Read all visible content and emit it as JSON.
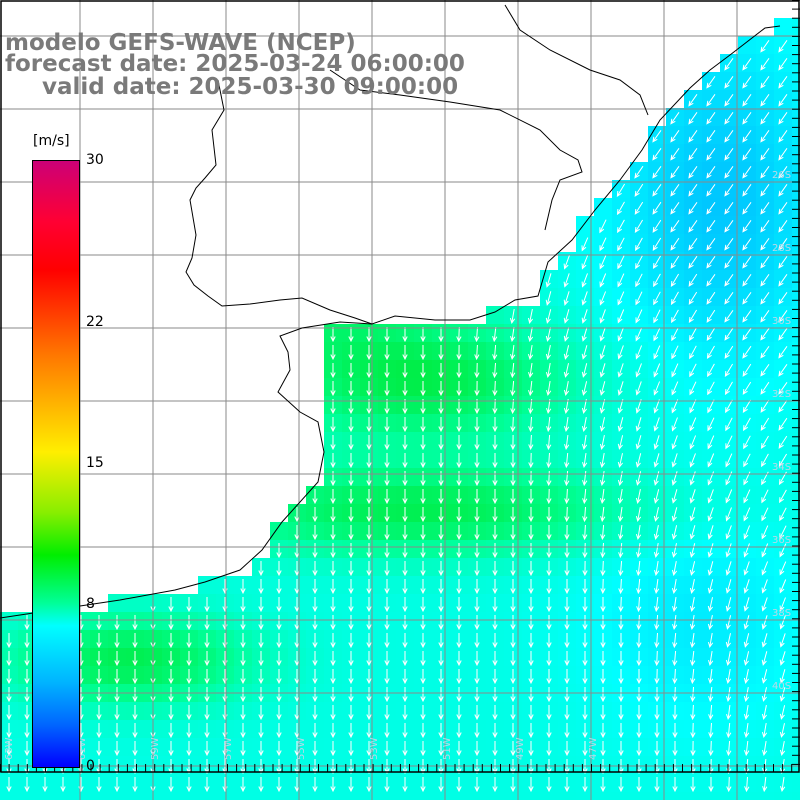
{
  "title": {
    "line1": "modelo GEFS-WAVE (NCEP)",
    "line2": "forecast date: 2025-03-24 06:00:00",
    "line3": "valid date: 2025-03-30 09:00:00"
  },
  "colorbar": {
    "unit": "[m/s]",
    "min": 0,
    "max": 30,
    "ticks": [
      "30",
      "22",
      "15",
      "8",
      "0"
    ],
    "stops": [
      {
        "v": 30,
        "c": "#cc0077"
      },
      {
        "v": 22,
        "c": "#ff2200"
      },
      {
        "v": 15,
        "c": "#ffee00"
      },
      {
        "v": 8,
        "c": "#00ffff"
      },
      {
        "v": 0,
        "c": "#0000ff"
      }
    ]
  },
  "axis_labels": {
    "bottom": [
      "63W",
      "61W",
      "59W",
      "57W",
      "55W",
      "53W",
      "51W",
      "49W",
      "47W"
    ],
    "right": [
      "26S",
      "28S",
      "30S",
      "32S",
      "34S",
      "36S",
      "38S",
      "40S"
    ]
  },
  "colors": {
    "land": "#ffffff",
    "coast": "#000000",
    "grid": "#808080",
    "arrows": "#ffffff",
    "title": "#7a7a7a"
  }
}
